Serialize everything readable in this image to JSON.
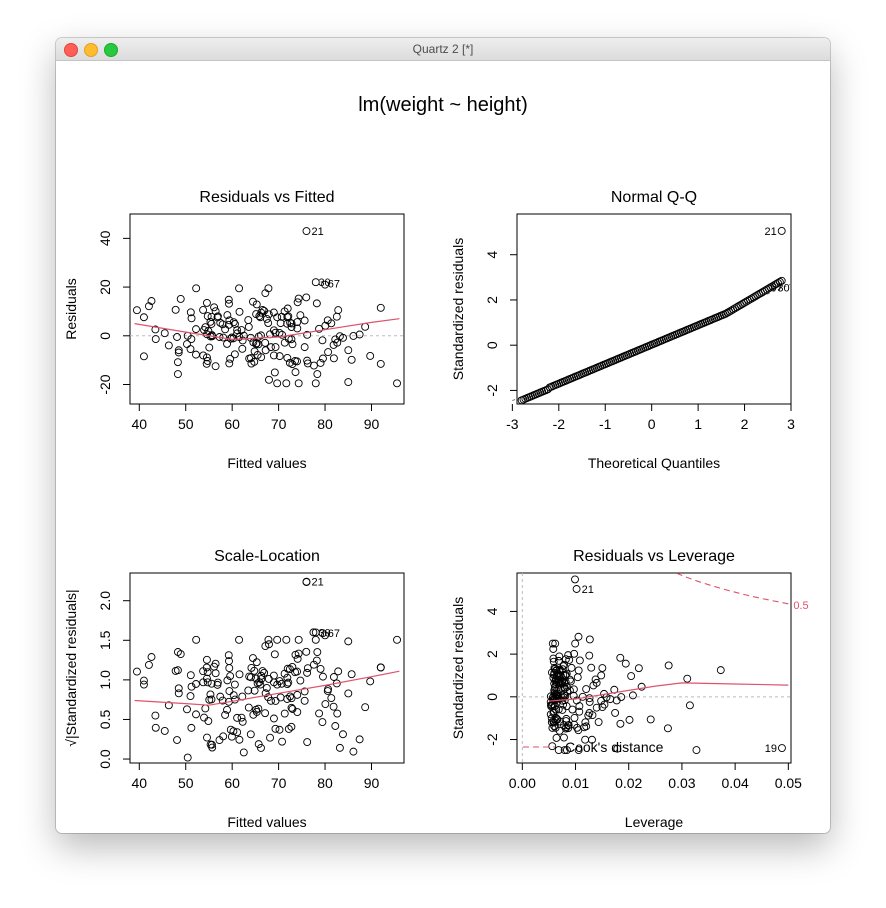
{
  "window": {
    "title": "Quartz 2 [*]",
    "buttons": [
      "close",
      "minimize",
      "zoom"
    ]
  },
  "figure": {
    "main_title": "lm(weight ~ height)"
  },
  "colors": {
    "smooth": "#df536b",
    "points": "#000000",
    "reference": "#bbbbbb"
  },
  "chart_data": [
    {
      "id": "resfit",
      "type": "scatter",
      "title": "Residuals vs Fitted",
      "xlabel": "Fitted values",
      "ylabel": "Residuals",
      "xlim": [
        38,
        97
      ],
      "ylim": [
        -28,
        50
      ],
      "xticks": [
        40,
        50,
        60,
        70,
        80,
        90
      ],
      "yticks": [
        -20,
        0,
        20,
        40
      ],
      "hline": 0,
      "labels": [
        {
          "text": "21",
          "x": 76,
          "y": 43
        },
        {
          "text": "30",
          "x": 77.5,
          "y": 22
        },
        {
          "text": "67",
          "x": 79.5,
          "y": 21.5
        }
      ],
      "smooth": [
        [
          39,
          5
        ],
        [
          50,
          1.5
        ],
        [
          60,
          -1.5
        ],
        [
          70,
          -0.5
        ],
        [
          80,
          2.5
        ],
        [
          90,
          5.5
        ],
        [
          96,
          7
        ]
      ]
    },
    {
      "id": "qq",
      "type": "scatter",
      "title": "Normal Q-Q",
      "xlabel": "Theoretical Quantiles",
      "ylabel": "Standardized residuals",
      "xlim": [
        -2.9,
        3
      ],
      "ylim": [
        -2.6,
        5.8
      ],
      "xticks": [
        -3,
        -2,
        -1,
        0,
        1,
        2,
        3
      ],
      "yticks": [
        -2,
        0,
        2,
        4
      ],
      "refline": [
        [
          -3,
          -2.45
        ],
        [
          3,
          2.7
        ]
      ],
      "labels": [
        {
          "text": "21",
          "x": 2.8,
          "y": 5.05
        },
        {
          "text": "67",
          "x": 2.45,
          "y": 2.58
        },
        {
          "text": "30",
          "x": 2.6,
          "y": 2.55
        }
      ]
    },
    {
      "id": "scaleloc",
      "type": "scatter",
      "title": "Scale-Location",
      "xlabel": "Fitted values",
      "ylabel": "√|Standardized residuals|",
      "xlim": [
        38,
        97
      ],
      "ylim": [
        -0.05,
        2.35
      ],
      "xticks": [
        40,
        50,
        60,
        70,
        80,
        90
      ],
      "yticks": [
        0.0,
        0.5,
        1.0,
        1.5,
        2.0
      ],
      "yticklabels": [
        "0.0",
        "0.5",
        "1.0",
        "1.5",
        "2.0"
      ],
      "labels": [
        {
          "text": "21",
          "x": 76,
          "y": 2.24
        },
        {
          "text": "30",
          "x": 77.5,
          "y": 1.6
        },
        {
          "text": "67",
          "x": 79.5,
          "y": 1.59
        }
      ],
      "smooth": [
        [
          39,
          0.74
        ],
        [
          50,
          0.7
        ],
        [
          55,
          0.68
        ],
        [
          60,
          0.73
        ],
        [
          70,
          0.83
        ],
        [
          80,
          0.93
        ],
        [
          90,
          1.04
        ],
        [
          96,
          1.11
        ]
      ]
    },
    {
      "id": "resleverage",
      "type": "scatter",
      "title": "Residuals vs Leverage",
      "xlabel": "Leverage",
      "ylabel": "Standardized residuals",
      "xlim": [
        -0.001,
        0.0505
      ],
      "ylim": [
        -3.1,
        5.8
      ],
      "xticks": [
        0.0,
        0.01,
        0.02,
        0.03,
        0.04,
        0.05
      ],
      "xticklabels": [
        "0.00",
        "0.01",
        "0.02",
        "0.03",
        "0.04",
        "0.05"
      ],
      "yticks": [
        -2,
        0,
        2,
        4
      ],
      "hline": 0,
      "vline": 0,
      "cooks_label": "0.5",
      "legend_text": "Cook's distance",
      "labels": [
        {
          "text": "21",
          "x": 0.0102,
          "y": 5.05
        },
        {
          "text": "19",
          "x": 0.0488,
          "y": -2.4
        }
      ],
      "smooth": [
        [
          0.005,
          -0.2
        ],
        [
          0.01,
          -0.1
        ],
        [
          0.015,
          0.1
        ],
        [
          0.02,
          0.3
        ],
        [
          0.025,
          0.5
        ],
        [
          0.03,
          0.65
        ],
        [
          0.04,
          0.6
        ],
        [
          0.05,
          0.55
        ]
      ]
    }
  ]
}
